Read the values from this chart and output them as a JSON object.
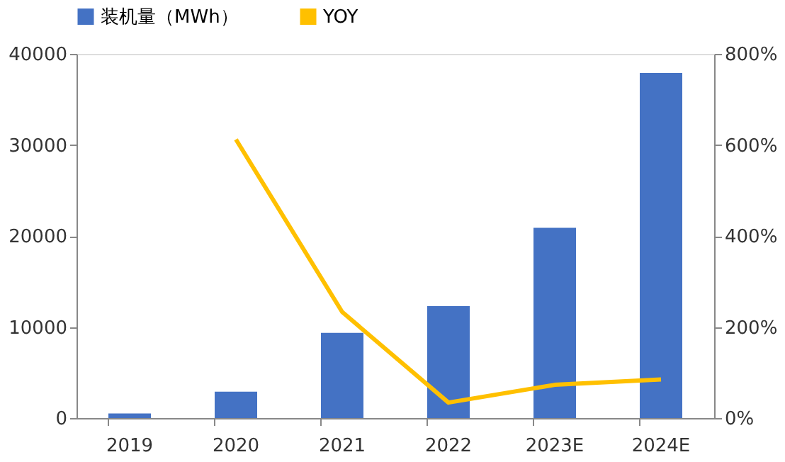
{
  "chart_data": {
    "type": "bar",
    "categories": [
      "2019",
      "2020",
      "2021",
      "2022",
      "2023E",
      "2024E"
    ],
    "series": [
      {
        "name": "装机量（MWh）",
        "type": "bar",
        "color": "#4472c4",
        "values": [
          500,
          2900,
          9350,
          12300,
          20900,
          37900
        ]
      },
      {
        "name": "YOY",
        "type": "line",
        "axis": "y2",
        "color": "#ffc000",
        "values": [
          null,
          612,
          233,
          34,
          73,
          85
        ]
      }
    ],
    "ylim": [
      0,
      40000
    ],
    "yticks": [
      0,
      10000,
      20000,
      30000,
      40000
    ],
    "y2lim": [
      0,
      800
    ],
    "y2ticks": [
      {
        "value": 0,
        "label": "0%"
      },
      {
        "value": 200,
        "label": "200%"
      },
      {
        "value": 400,
        "label": "400%"
      },
      {
        "value": 600,
        "label": "600%"
      },
      {
        "value": 800,
        "label": "800%"
      }
    ],
    "grid": false,
    "legend": "top",
    "marker": "none"
  }
}
